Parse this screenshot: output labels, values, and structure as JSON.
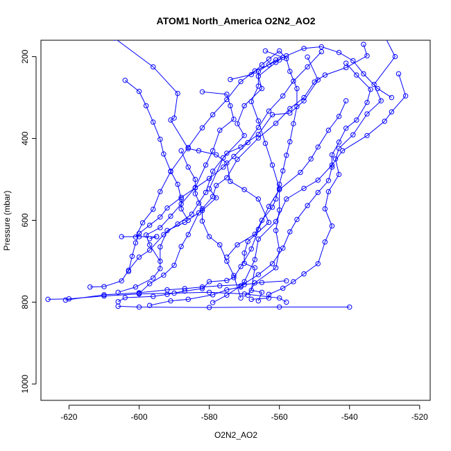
{
  "chart_data": {
    "type": "line",
    "title": "ATOM1 North_America O2N2_AO2",
    "xlabel": "O2N2_AO2",
    "ylabel": "Pressure (mbar)",
    "xlim": [
      -628,
      -517
    ],
    "ylim": [
      1040,
      160
    ],
    "y_inverted": true,
    "grid": false,
    "legend": "none",
    "marker": "open-circle",
    "color": "#0000ff",
    "x_ticks": [
      -620,
      -600,
      -580,
      -560,
      -540,
      -520
    ],
    "y_ticks": [
      200,
      400,
      600,
      800,
      1000
    ],
    "series": [
      {
        "points": [
          [
            -607,
            155
          ],
          [
            -596,
            225
          ],
          [
            -589,
            290
          ],
          [
            -590,
            350
          ],
          [
            -591,
            355
          ],
          [
            -586,
            425
          ],
          [
            -583,
            430
          ],
          [
            -578,
            440
          ],
          [
            -575,
            460
          ],
          [
            -574,
            505
          ],
          [
            -570,
            525
          ],
          [
            -566,
            548
          ],
          [
            -563,
            605
          ],
          [
            -569,
            652
          ],
          [
            -570,
            680
          ],
          [
            -570,
            705
          ],
          [
            -567,
            716
          ],
          [
            -568,
            771
          ],
          [
            -565,
            776
          ],
          [
            -566,
            797
          ]
        ]
      },
      {
        "points": [
          [
            -564,
            186
          ],
          [
            -559,
            202
          ],
          [
            -560,
            208
          ],
          [
            -561,
            214
          ],
          [
            -566,
            248
          ],
          [
            -565,
            278
          ],
          [
            -570,
            320
          ],
          [
            -572,
            364
          ],
          [
            -570,
            393
          ],
          [
            -576,
            447
          ],
          [
            -580,
            523
          ],
          [
            -578,
            545
          ],
          [
            -582,
            576
          ],
          [
            -587,
            605
          ],
          [
            -592,
            625
          ],
          [
            -594,
            665
          ],
          [
            -594,
            718
          ],
          [
            -596,
            741
          ],
          [
            -601,
            763
          ],
          [
            -606,
            776
          ]
        ]
      },
      {
        "points": [
          [
            -552,
            201
          ],
          [
            -549,
            257
          ],
          [
            -553,
            308
          ],
          [
            -557,
            338
          ],
          [
            -562,
            342
          ],
          [
            -566,
            390
          ],
          [
            -571,
            421
          ],
          [
            -575,
            436
          ],
          [
            -579,
            480
          ],
          [
            -581,
            532
          ],
          [
            -583,
            558
          ],
          [
            -585,
            585
          ],
          [
            -589,
            609
          ],
          [
            -593,
            635
          ],
          [
            -597,
            673
          ],
          [
            -600,
            690
          ],
          [
            -603,
            722
          ],
          [
            -605,
            748
          ],
          [
            -610,
            762
          ],
          [
            -614,
            763
          ]
        ]
      },
      {
        "points": [
          [
            -536,
            170
          ],
          [
            -535,
            198
          ],
          [
            -541,
            227
          ],
          [
            -547,
            245
          ],
          [
            -550,
            262
          ],
          [
            -553,
            300
          ],
          [
            -557,
            327
          ],
          [
            -561,
            363
          ],
          [
            -566,
            399
          ],
          [
            -572,
            451
          ],
          [
            -575,
            496
          ],
          [
            -578,
            515
          ],
          [
            -579,
            542
          ],
          [
            -583,
            582
          ],
          [
            -586,
            635
          ],
          [
            -588,
            664
          ],
          [
            -590,
            710
          ],
          [
            -593,
            734
          ],
          [
            -597,
            755
          ],
          [
            -600,
            779
          ]
        ]
      },
      {
        "points": [
          [
            -530,
            150
          ],
          [
            -527,
            200
          ],
          [
            -533,
            268
          ],
          [
            -531,
            308
          ],
          [
            -535,
            340
          ],
          [
            -539,
            391
          ],
          [
            -543,
            424
          ],
          [
            -544,
            450
          ],
          [
            -543,
            488
          ],
          [
            -546,
            530
          ],
          [
            -547,
            572
          ],
          [
            -545,
            614
          ],
          [
            -547,
            653
          ],
          [
            -549,
            706
          ],
          [
            -553,
            731
          ],
          [
            -556,
            750
          ],
          [
            -559,
            766
          ],
          [
            -563,
            781
          ],
          [
            -563,
            790
          ],
          [
            -568,
            793
          ]
        ]
      },
      {
        "points": [
          [
            -526,
            242
          ],
          [
            -524,
            296
          ],
          [
            -528,
            335
          ],
          [
            -530,
            358
          ],
          [
            -535,
            393
          ],
          [
            -542,
            430
          ],
          [
            -545,
            465
          ],
          [
            -549,
            502
          ],
          [
            -553,
            522
          ],
          [
            -558,
            548
          ],
          [
            -561,
            603
          ],
          [
            -566,
            646
          ],
          [
            -567,
            696
          ],
          [
            -570,
            750
          ],
          [
            -571,
            763
          ],
          [
            -575,
            770
          ],
          [
            -579,
            782
          ],
          [
            -586,
            793
          ],
          [
            -591,
            797
          ],
          [
            -597,
            808
          ]
        ]
      },
      {
        "points": [
          [
            -541,
            308
          ],
          [
            -543,
            346
          ],
          [
            -546,
            380
          ],
          [
            -549,
            421
          ],
          [
            -551,
            450
          ],
          [
            -554,
            483
          ],
          [
            -560,
            525
          ],
          [
            -563,
            566
          ],
          [
            -566,
            622
          ],
          [
            -568,
            670
          ],
          [
            -571,
            713
          ],
          [
            -573,
            740
          ],
          [
            -575,
            747
          ],
          [
            -580,
            750
          ],
          [
            -582,
            767
          ],
          [
            -587,
            773
          ],
          [
            -592,
            781
          ],
          [
            -596,
            786
          ],
          [
            -604,
            789
          ],
          [
            -606,
            799
          ]
        ]
      },
      {
        "points": [
          [
            -528,
            300
          ],
          [
            -532,
            278
          ],
          [
            -536,
            242
          ],
          [
            -539,
            210
          ],
          [
            -543,
            190
          ],
          [
            -548,
            176
          ],
          [
            -553,
            180
          ],
          [
            -558,
            198
          ],
          [
            -563,
            220
          ],
          [
            -567,
            235
          ],
          [
            -571,
            261
          ],
          [
            -575,
            305
          ],
          [
            -579,
            342
          ],
          [
            -582,
            374
          ],
          [
            -586,
            422
          ],
          [
            -591,
            481
          ],
          [
            -594,
            530
          ],
          [
            -596,
            573
          ],
          [
            -599,
            606
          ],
          [
            -601,
            641
          ]
        ]
      },
      {
        "points": [
          [
            -540,
            812
          ],
          [
            -560,
            812
          ],
          [
            -580,
            813
          ],
          [
            -600,
            812
          ],
          [
            -606,
            810
          ]
        ]
      },
      {
        "points": [
          [
            -626,
            793
          ],
          [
            -620,
            792
          ],
          [
            -610,
            785
          ],
          [
            -600,
            780
          ],
          [
            -590,
            778
          ],
          [
            -580,
            776
          ],
          [
            -570,
            780
          ],
          [
            -560,
            790
          ],
          [
            -558,
            800
          ]
        ]
      },
      {
        "points": [
          [
            -621,
            795
          ],
          [
            -610,
            782
          ],
          [
            -600,
            777
          ],
          [
            -592,
            770
          ],
          [
            -587,
            767
          ],
          [
            -582,
            763
          ],
          [
            -577,
            760
          ],
          [
            -570,
            757
          ],
          [
            -565,
            752
          ],
          [
            -558,
            748
          ]
        ]
      },
      {
        "points": [
          [
            -561,
            208
          ],
          [
            -566,
            236
          ],
          [
            -566,
            272
          ],
          [
            -568,
            310
          ],
          [
            -566,
            357
          ],
          [
            -564,
            412
          ],
          [
            -562,
            465
          ],
          [
            -560,
            522
          ],
          [
            -560,
            575
          ],
          [
            -561,
            625
          ],
          [
            -560,
            672
          ],
          [
            -561,
            716
          ],
          [
            -567,
            753
          ],
          [
            -569,
            783
          ]
        ]
      },
      {
        "points": [
          [
            -582,
            286
          ],
          [
            -575,
            292
          ],
          [
            -574,
            320
          ],
          [
            -573,
            353
          ],
          [
            -577,
            380
          ],
          [
            -579,
            430
          ],
          [
            -581,
            465
          ],
          [
            -584,
            520
          ],
          [
            -588,
            560
          ],
          [
            -591,
            590
          ],
          [
            -594,
            618
          ],
          [
            -598,
            636
          ],
          [
            -597,
            660
          ],
          [
            -594,
            700
          ]
        ]
      },
      {
        "points": [
          [
            -574,
            256
          ],
          [
            -568,
            244
          ],
          [
            -565,
            220
          ],
          [
            -563,
            206
          ],
          [
            -560,
            186
          ],
          [
            -558,
            205
          ],
          [
            -557,
            236
          ],
          [
            -555,
            278
          ],
          [
            -555,
            322
          ],
          [
            -556,
            364
          ],
          [
            -557,
            408
          ],
          [
            -558,
            441
          ],
          [
            -559,
            479
          ],
          [
            -560,
            512
          ],
          [
            -561,
            548
          ],
          [
            -562,
            568
          ],
          [
            -565,
            600
          ],
          [
            -567,
            634
          ],
          [
            -572,
            660
          ],
          [
            -575,
            690
          ]
        ]
      },
      {
        "points": [
          [
            -548,
            188
          ],
          [
            -552,
            225
          ],
          [
            -556,
            260
          ],
          [
            -559,
            296
          ],
          [
            -563,
            333
          ],
          [
            -566,
            373
          ],
          [
            -569,
            410
          ],
          [
            -573,
            444
          ],
          [
            -576,
            470
          ],
          [
            -580,
            498
          ],
          [
            -584,
            521
          ],
          [
            -588,
            544
          ],
          [
            -592,
            570
          ],
          [
            -594,
            592
          ],
          [
            -597,
            612
          ],
          [
            -600,
            632
          ],
          [
            -601,
            655
          ],
          [
            -602,
            688
          ],
          [
            -603,
            725
          ]
        ]
      },
      {
        "points": [
          [
            -541,
            216
          ],
          [
            -538,
            245
          ],
          [
            -534,
            280
          ],
          [
            -535,
            312
          ],
          [
            -538,
            355
          ],
          [
            -541,
            375
          ],
          [
            -543,
            409
          ],
          [
            -545,
            440
          ],
          [
            -545,
            470
          ],
          [
            -546,
            503
          ],
          [
            -549,
            532
          ],
          [
            -552,
            564
          ],
          [
            -555,
            598
          ],
          [
            -557,
            628
          ],
          [
            -559,
            668
          ],
          [
            -562,
            706
          ],
          [
            -566,
            733
          ],
          [
            -571,
            760
          ],
          [
            -575,
            783
          ],
          [
            -579,
            801
          ]
        ]
      },
      {
        "points": [
          [
            -595,
            640
          ],
          [
            -600,
            640
          ],
          [
            -605,
            640
          ],
          [
            -595,
            640
          ],
          [
            -597,
            645
          ]
        ]
      },
      {
        "points": [
          [
            -588,
            430
          ],
          [
            -586,
            470
          ],
          [
            -584,
            500
          ],
          [
            -584,
            535
          ],
          [
            -582,
            572
          ],
          [
            -582,
            602
          ],
          [
            -580,
            640
          ],
          [
            -577,
            660
          ],
          [
            -575,
            700
          ],
          [
            -573,
            735
          ],
          [
            -571,
            790
          ]
        ]
      },
      {
        "points": [
          [
            -604,
            258
          ],
          [
            -600,
            285
          ],
          [
            -598,
            320
          ],
          [
            -596,
            360
          ],
          [
            -594,
            402
          ],
          [
            -593,
            438
          ],
          [
            -591,
            480
          ],
          [
            -589,
            512
          ],
          [
            -588,
            548
          ],
          [
            -588,
            572
          ],
          [
            -586,
            600
          ]
        ]
      }
    ]
  }
}
